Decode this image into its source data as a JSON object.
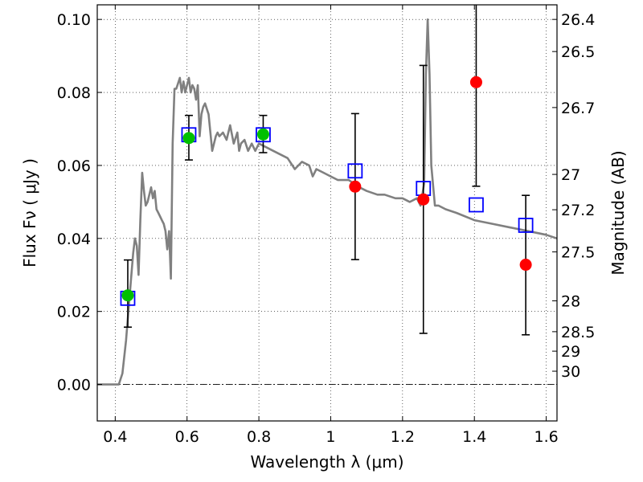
{
  "chart_data": {
    "type": "scatter",
    "xlabel": "Wavelength  λ (μm)",
    "ylabel": "Flux  Fν  ( μJy )",
    "ylabel_right": "Magnitude (AB)",
    "xlim": [
      0.35,
      1.63
    ],
    "ylim": [
      -0.01,
      0.104
    ],
    "grid": true,
    "x_ticks": [
      {
        "value": 0.4,
        "label": "0.4"
      },
      {
        "value": 0.6,
        "label": "0.6"
      },
      {
        "value": 0.8,
        "label": "0.8"
      },
      {
        "value": 1.0,
        "label": "1"
      },
      {
        "value": 1.2,
        "label": "1.2"
      },
      {
        "value": 1.4,
        "label": "1.4"
      },
      {
        "value": 1.6,
        "label": "1.6"
      }
    ],
    "y_ticks": [
      {
        "value": 0.0,
        "label": "0.00"
      },
      {
        "value": 0.02,
        "label": "0.02"
      },
      {
        "value": 0.04,
        "label": "0.04"
      },
      {
        "value": 0.06,
        "label": "0.06"
      },
      {
        "value": 0.08,
        "label": "0.08"
      },
      {
        "value": 0.1,
        "label": "0.10"
      }
    ],
    "right_ticks": [
      {
        "mag": 26.4,
        "label": "26.4"
      },
      {
        "mag": 26.5,
        "label": "26.5"
      },
      {
        "mag": 26.7,
        "label": "26.7"
      },
      {
        "mag": 27.0,
        "label": "27"
      },
      {
        "mag": 27.2,
        "label": "27.2"
      },
      {
        "mag": 27.5,
        "label": "27.5"
      },
      {
        "mag": 28.0,
        "label": "28"
      },
      {
        "mag": 28.5,
        "label": "28.5"
      },
      {
        "mag": 29.0,
        "label": "29"
      },
      {
        "mag": 30.0,
        "label": "30"
      }
    ],
    "series": [
      {
        "type": "line",
        "color": "#808080",
        "x": [
          0.35,
          0.4,
          0.41,
          0.42,
          0.43,
          0.44,
          0.45,
          0.455,
          0.46,
          0.465,
          0.47,
          0.475,
          0.48,
          0.485,
          0.49,
          0.495,
          0.5,
          0.505,
          0.51,
          0.515,
          0.52,
          0.525,
          0.53,
          0.535,
          0.54,
          0.545,
          0.55,
          0.555,
          0.56,
          0.565,
          0.57,
          0.58,
          0.585,
          0.59,
          0.595,
          0.6,
          0.605,
          0.61,
          0.615,
          0.62,
          0.625,
          0.63,
          0.635,
          0.64,
          0.645,
          0.65,
          0.66,
          0.67,
          0.68,
          0.685,
          0.69,
          0.7,
          0.71,
          0.72,
          0.73,
          0.74,
          0.745,
          0.75,
          0.76,
          0.77,
          0.78,
          0.79,
          0.8,
          0.82,
          0.84,
          0.86,
          0.88,
          0.9,
          0.92,
          0.94,
          0.95,
          0.96,
          0.98,
          1.0,
          1.02,
          1.05,
          1.08,
          1.1,
          1.13,
          1.15,
          1.18,
          1.2,
          1.22,
          1.24,
          1.25,
          1.26,
          1.265,
          1.27,
          1.275,
          1.28,
          1.29,
          1.3,
          1.32,
          1.35,
          1.4,
          1.45,
          1.5,
          1.55,
          1.6,
          1.63
        ],
        "y": [
          0.0,
          0.0,
          0.0,
          0.003,
          0.012,
          0.024,
          0.036,
          0.04,
          0.038,
          0.03,
          0.045,
          0.058,
          0.053,
          0.049,
          0.05,
          0.052,
          0.054,
          0.051,
          0.053,
          0.048,
          0.047,
          0.046,
          0.045,
          0.044,
          0.042,
          0.037,
          0.042,
          0.029,
          0.066,
          0.081,
          0.081,
          0.084,
          0.08,
          0.083,
          0.08,
          0.082,
          0.084,
          0.08,
          0.082,
          0.081,
          0.078,
          0.082,
          0.068,
          0.074,
          0.076,
          0.077,
          0.074,
          0.064,
          0.068,
          0.069,
          0.068,
          0.069,
          0.067,
          0.071,
          0.066,
          0.069,
          0.064,
          0.066,
          0.067,
          0.064,
          0.066,
          0.064,
          0.066,
          0.065,
          0.064,
          0.063,
          0.062,
          0.059,
          0.061,
          0.06,
          0.057,
          0.059,
          0.058,
          0.057,
          0.056,
          0.056,
          0.054,
          0.053,
          0.052,
          0.052,
          0.051,
          0.051,
          0.05,
          0.051,
          0.049,
          0.055,
          0.085,
          0.1,
          0.085,
          0.06,
          0.049,
          0.049,
          0.048,
          0.047,
          0.045,
          0.044,
          0.043,
          0.042,
          0.041,
          0.04
        ]
      },
      {
        "type": "open-square",
        "color": "#0000ff",
        "x": [
          0.435,
          0.605,
          0.812,
          1.068,
          1.258,
          1.405,
          1.543
        ],
        "y": [
          0.0236,
          0.0684,
          0.0684,
          0.0585,
          0.0537,
          0.0492,
          0.0436
        ]
      },
      {
        "type": "filled-circle",
        "color": "#00c000",
        "x": [
          0.435,
          0.605,
          0.812
        ],
        "y": [
          0.0244,
          0.0675,
          0.0685
        ]
      },
      {
        "type": "filled-circle",
        "color": "#ff0000",
        "x": [
          1.068,
          1.258,
          1.405,
          1.543
        ],
        "y": [
          0.0542,
          0.0507,
          0.0828,
          0.0328
        ]
      },
      {
        "type": "errorbar",
        "color": "#000000",
        "x": [
          0.435,
          0.605,
          0.812,
          1.068,
          1.258,
          1.405,
          1.543
        ],
        "y_low": [
          0.0157,
          0.0615,
          0.0635,
          0.0342,
          0.014,
          0.0543,
          0.0136
        ],
        "y_high": [
          0.0341,
          0.0737,
          0.0737,
          0.0742,
          0.0874,
          0.106,
          0.0518
        ],
        "capped_top": [
          true,
          true,
          true,
          true,
          true,
          false,
          true
        ]
      }
    ]
  }
}
